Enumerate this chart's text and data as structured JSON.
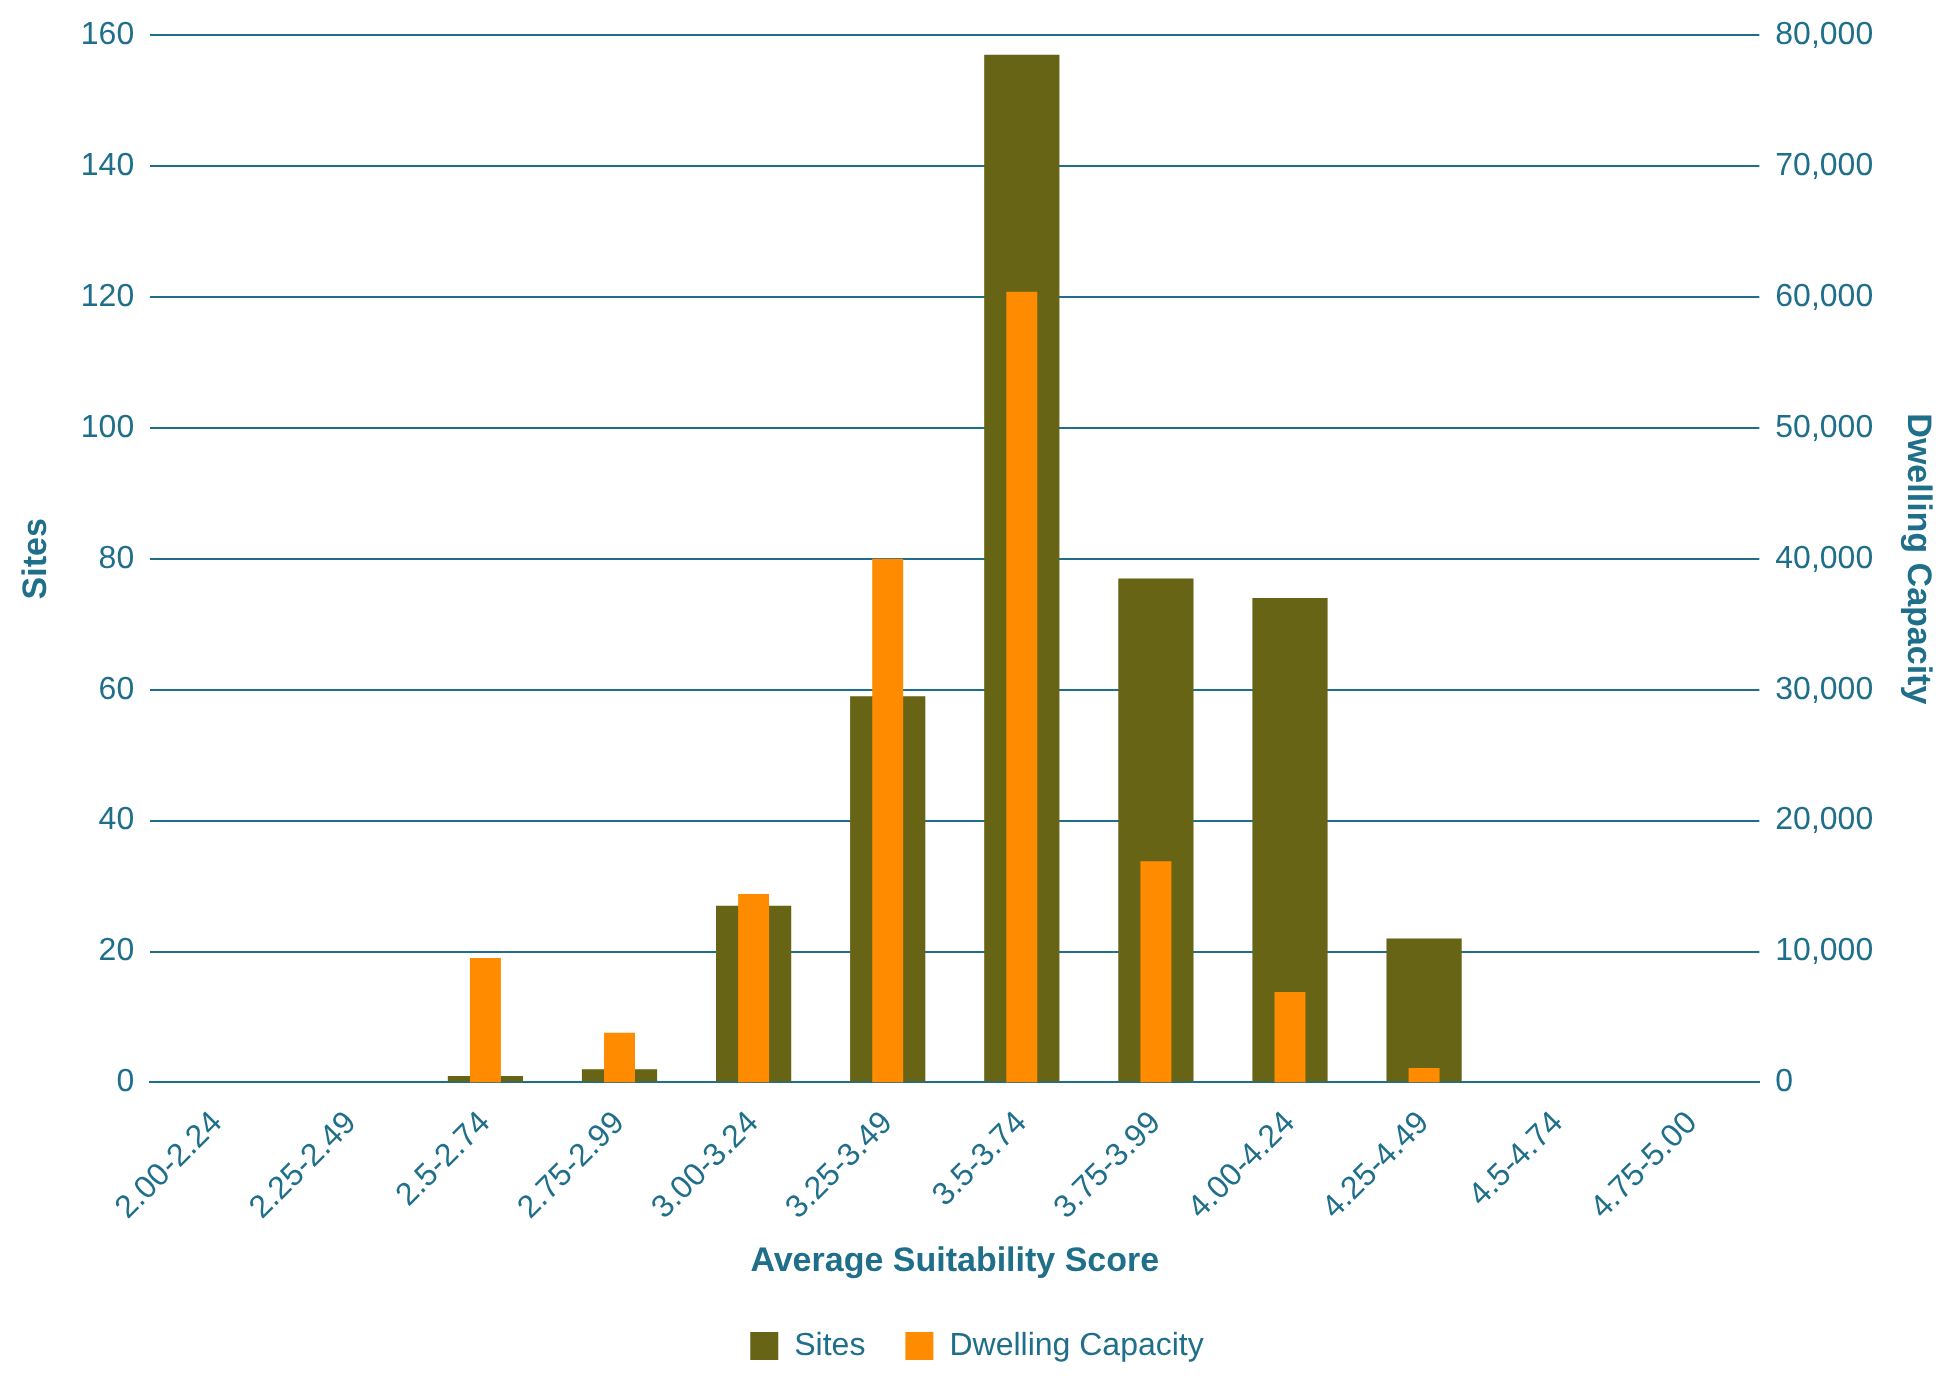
{
  "chart_data": {
    "type": "bar",
    "xlabel": "Average Suitability Score",
    "ylabel": "Sites",
    "y2label": "Dwelling Capacity",
    "categories": [
      "2.00-2.24",
      "2.25-2.49",
      "2.5-2.74",
      "2.75-2.99",
      "3.00-3.24",
      "3.25-3.49",
      "3.5-3.74",
      "3.75-3.99",
      "4.00-4.24",
      "4.25-4.49",
      "4.5-4.74",
      "4.75-5.00"
    ],
    "series": [
      {
        "name": "Sites",
        "color": "#676415",
        "values": [
          0,
          0,
          1,
          2,
          27,
          59,
          157,
          77,
          74,
          22,
          0,
          0
        ]
      },
      {
        "name": "Dwelling Capacity",
        "color": "#ff8c00",
        "axis": "y2",
        "values": [
          0,
          0,
          9500,
          3800,
          14400,
          40000,
          60400,
          16900,
          6900,
          1100,
          0,
          0
        ]
      }
    ],
    "ylim": [
      0,
      160
    ],
    "yticks": [
      0,
      20,
      40,
      60,
      80,
      100,
      120,
      140,
      160
    ],
    "y2lim": [
      0,
      80000
    ],
    "y2ticks": [
      0,
      {
        "value": 10000,
        "label": "10,000"
      },
      {
        "value": 20000,
        "label": "20,000"
      },
      {
        "value": 30000,
        "label": "30,000"
      },
      {
        "value": 40000,
        "label": "40,000"
      },
      {
        "value": 50000,
        "label": "50,000"
      },
      {
        "value": 60000,
        "label": "60,000"
      },
      {
        "value": 70000,
        "label": "70,000"
      },
      {
        "value": 80000,
        "label": "80,000"
      }
    ],
    "grid": "y",
    "legend": "bottom"
  }
}
